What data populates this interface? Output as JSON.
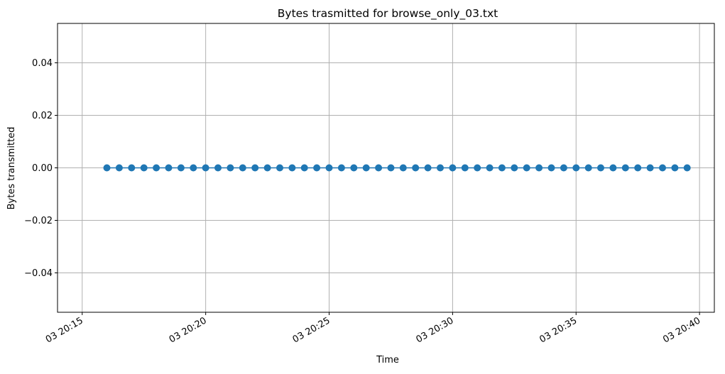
{
  "chart_data": {
    "type": "line",
    "title": "Bytes trasmitted for browse_only_03.txt",
    "xlabel": "Time",
    "ylabel": "Bytes transmitted",
    "x_time_ticks": [
      "03 20:15",
      "03 20:20",
      "03 20:25",
      "03 20:30",
      "03 20:35",
      "03 20:40"
    ],
    "y_ticks": [
      -0.04,
      -0.02,
      0.0,
      0.02,
      0.04
    ],
    "y_tick_labels": [
      "−0.04",
      "−0.02",
      "0.00",
      "0.02",
      "0.04"
    ],
    "ylim": [
      -0.055,
      0.055
    ],
    "grid": true,
    "marker": "circle",
    "color": "#1f77b4",
    "series": [
      {
        "x": [
          "20:16:00",
          "20:16:30",
          "20:17:00",
          "20:17:30",
          "20:18:00",
          "20:18:30",
          "20:19:00",
          "20:19:30",
          "20:20:00",
          "20:20:30",
          "20:21:00",
          "20:21:30",
          "20:22:00",
          "20:22:30",
          "20:23:00",
          "20:23:30",
          "20:24:00",
          "20:24:30",
          "20:25:00",
          "20:25:30",
          "20:26:00",
          "20:26:30",
          "20:27:00",
          "20:27:30",
          "20:28:00",
          "20:28:30",
          "20:29:00",
          "20:29:30",
          "20:30:00",
          "20:30:30",
          "20:31:00",
          "20:31:30",
          "20:32:00",
          "20:32:30",
          "20:33:00",
          "20:33:30",
          "20:34:00",
          "20:34:30",
          "20:35:00",
          "20:35:30",
          "20:36:00",
          "20:36:30",
          "20:37:00",
          "20:37:30",
          "20:38:00",
          "20:38:30",
          "20:39:00",
          "20:39:30"
        ],
        "y": [
          0,
          0,
          0,
          0,
          0,
          0,
          0,
          0,
          0,
          0,
          0,
          0,
          0,
          0,
          0,
          0,
          0,
          0,
          0,
          0,
          0,
          0,
          0,
          0,
          0,
          0,
          0,
          0,
          0,
          0,
          0,
          0,
          0,
          0,
          0,
          0,
          0,
          0,
          0,
          0,
          0,
          0,
          0,
          0,
          0,
          0,
          0,
          0
        ]
      }
    ]
  }
}
